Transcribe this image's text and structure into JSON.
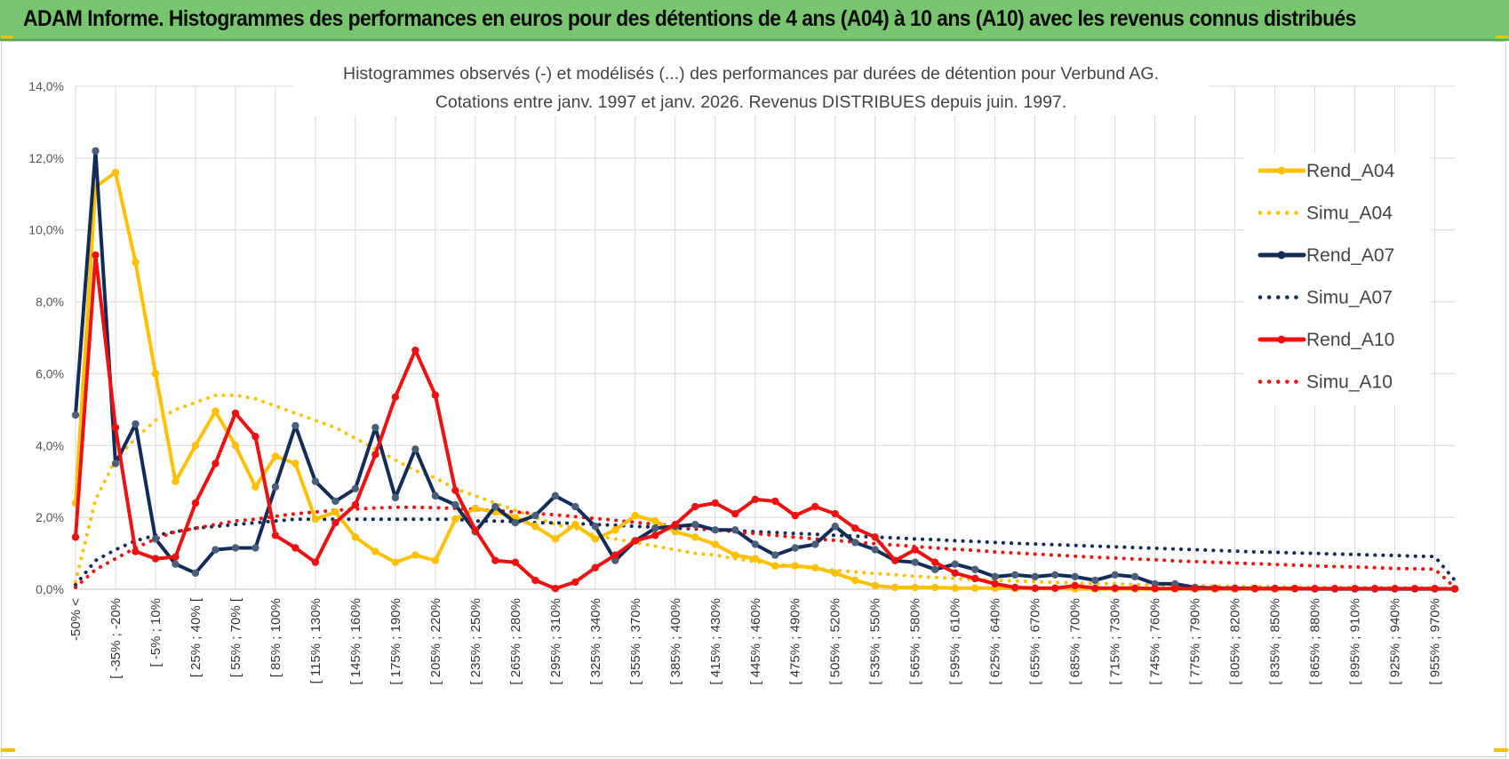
{
  "banner": {
    "title": "ADAM Informe. Histogrammes des performances en euros pour des détentions de 4 ans (A04) à 10 ans (A10) avec les revenus connus distribués"
  },
  "colors": {
    "banner": "#77c66f",
    "A04": "#ffc000",
    "A07": "#132b57",
    "A10": "#ee1111",
    "A07_marker": "#4a5f7a",
    "grid": "#d9d9d9"
  },
  "chart_data": {
    "type": "line",
    "title": [
      "Histogrammes observés (-) et modélisés (...) des performances par durées de détention pour Verbund AG.",
      "Cotations entre janv. 1997 et janv. 2026. Revenus DISTRIBUES depuis juin. 1997."
    ],
    "ylim": [
      0,
      0.14
    ],
    "yticks": [
      "0,0%",
      "2,0%",
      "4,0%",
      "6,0%",
      "8,0%",
      "10,0%",
      "12,0%",
      "14,0%"
    ],
    "x_labels": [
      "-50% <",
      "[ -35% ; -20%",
      "[ -5% ; 10%",
      "[ 25% ; 40% [",
      "[ 55% ; 70% [",
      "[ 85% ; 100%",
      "[ 115% ; 130%",
      "[ 145% ; 160%",
      "[ 175% ; 190%",
      "[ 205% ; 220%",
      "[ 235% ; 250%",
      "[ 265% ; 280%",
      "[ 295% ; 310%",
      "[ 325% ; 340%",
      "[ 355% ; 370%",
      "[ 385% ; 400%",
      "[ 415% ; 430%",
      "[ 445% ; 460%",
      "[ 475% ; 490%",
      "[ 505% ; 520%",
      "[ 535% ; 550%",
      "[ 565% ; 580%",
      "[ 595% ; 610%",
      "[ 625% ; 640%",
      "[ 655% ; 670%",
      "[ 685% ; 700%",
      "[ 715% ; 730%",
      "[ 745% ; 760%",
      "[ 775% ; 790%",
      "[ 805% ; 820%",
      "[ 835% ; 850%",
      "[ 865% ; 880%",
      "[ 895% ; 910%",
      "[ 925% ; 940%",
      "[ 955% ; 970%"
    ],
    "series": [
      {
        "name": "Rend_A04",
        "style": "solid",
        "color": "#ffc000",
        "values": [
          0.024,
          0.112,
          0.116,
          0.091,
          0.06,
          0.03,
          0.04,
          0.0495,
          0.04,
          0.0285,
          0.037,
          0.035,
          0.0195,
          0.0215,
          0.0145,
          0.0105,
          0.0075,
          0.0095,
          0.008,
          0.0195,
          0.0225,
          0.0215,
          0.02,
          0.0175,
          0.014,
          0.018,
          0.014,
          0.0165,
          0.0205,
          0.019,
          0.016,
          0.0145,
          0.0125,
          0.0095,
          0.0085,
          0.0065,
          0.0065,
          0.006,
          0.0045,
          0.0025,
          0.001,
          0.0005,
          0.0005,
          0.0005,
          0.0003,
          0.0003,
          0.0003,
          0.0002,
          0.0002,
          0.0002,
          0.0001,
          0.0001,
          0.0001,
          0.0001,
          0.0001,
          0.0001,
          0.0001,
          0.0001,
          0.0001,
          0.0001,
          0.0001,
          0.0001,
          0.0001,
          0.0001,
          0.0001,
          0.0001,
          0.0001,
          0.0001,
          0.0001,
          0.0001
        ]
      },
      {
        "name": "Simu_A04",
        "style": "dotted",
        "color": "#ffc000",
        "values": [
          0.002,
          0.025,
          0.036,
          0.042,
          0.047,
          0.05,
          0.052,
          0.054,
          0.054,
          0.053,
          0.051,
          0.049,
          0.047,
          0.045,
          0.042,
          0.039,
          0.036,
          0.033,
          0.031,
          0.028,
          0.026,
          0.024,
          0.022,
          0.02,
          0.018,
          0.017,
          0.015,
          0.014,
          0.013,
          0.012,
          0.011,
          0.01,
          0.0095,
          0.0085,
          0.0077,
          0.007,
          0.0064,
          0.0058,
          0.0053,
          0.0048,
          0.0044,
          0.004,
          0.0036,
          0.0033,
          0.003,
          0.0027,
          0.0025,
          0.0023,
          0.0021,
          0.0019,
          0.0017,
          0.0016,
          0.0015,
          0.0013,
          0.0012,
          0.0011,
          0.001,
          0.0009,
          0.0008,
          0.0008,
          0.0007,
          0.0006,
          0.0006,
          0.0005,
          0.0005,
          0.0005,
          0.0004,
          0.0004,
          0.0004,
          0.0001
        ]
      },
      {
        "name": "Rend_A07",
        "style": "solid",
        "color": "#132b57",
        "values": [
          0.0485,
          0.122,
          0.035,
          0.046,
          0.014,
          0.007,
          0.0045,
          0.011,
          0.0115,
          0.0115,
          0.0285,
          0.0455,
          0.03,
          0.0245,
          0.028,
          0.045,
          0.0255,
          0.039,
          0.026,
          0.0235,
          0.016,
          0.023,
          0.0185,
          0.0205,
          0.026,
          0.023,
          0.0175,
          0.008,
          0.0135,
          0.017,
          0.0175,
          0.018,
          0.0165,
          0.0165,
          0.0125,
          0.0095,
          0.0115,
          0.0125,
          0.0175,
          0.013,
          0.011,
          0.008,
          0.0075,
          0.0055,
          0.007,
          0.0055,
          0.0035,
          0.004,
          0.0035,
          0.004,
          0.0035,
          0.0025,
          0.004,
          0.0035,
          0.0015,
          0.0015,
          0.0005,
          0.0003,
          0.0003,
          0.0002,
          0.0002,
          0.0002,
          0.0001,
          0.0001,
          0.0001,
          0.0001,
          0.0001,
          0.0001,
          0.0001,
          0.0001
        ]
      },
      {
        "name": "Simu_A07",
        "style": "dotted",
        "color": "#132b57",
        "values": [
          0.0012,
          0.008,
          0.011,
          0.0135,
          0.015,
          0.016,
          0.017,
          0.0175,
          0.018,
          0.0185,
          0.019,
          0.0195,
          0.0195,
          0.0195,
          0.0195,
          0.0195,
          0.0195,
          0.0195,
          0.0195,
          0.0195,
          0.019,
          0.019,
          0.0188,
          0.0185,
          0.0185,
          0.0183,
          0.018,
          0.0178,
          0.0175,
          0.0173,
          0.017,
          0.0168,
          0.0165,
          0.0163,
          0.016,
          0.0158,
          0.0155,
          0.0153,
          0.015,
          0.0148,
          0.0145,
          0.0143,
          0.014,
          0.0138,
          0.0135,
          0.0133,
          0.013,
          0.0128,
          0.0126,
          0.0124,
          0.0122,
          0.012,
          0.0118,
          0.0116,
          0.0114,
          0.0112,
          0.011,
          0.0108,
          0.0106,
          0.0104,
          0.0103,
          0.0101,
          0.01,
          0.0098,
          0.0097,
          0.0095,
          0.0094,
          0.0092,
          0.0091,
          0.0025
        ]
      },
      {
        "name": "Rend_A10",
        "style": "solid",
        "color": "#ee1111",
        "values": [
          0.0145,
          0.093,
          0.045,
          0.0105,
          0.0085,
          0.009,
          0.024,
          0.035,
          0.049,
          0.0425,
          0.015,
          0.0115,
          0.0075,
          0.0185,
          0.0235,
          0.0375,
          0.0535,
          0.0665,
          0.054,
          0.0275,
          0.0165,
          0.008,
          0.0075,
          0.0025,
          0.0002,
          0.002,
          0.006,
          0.0095,
          0.0135,
          0.015,
          0.018,
          0.023,
          0.024,
          0.021,
          0.025,
          0.0245,
          0.0205,
          0.023,
          0.021,
          0.017,
          0.0145,
          0.008,
          0.011,
          0.0075,
          0.0045,
          0.003,
          0.0015,
          0.0005,
          0.0003,
          0.0003,
          0.001,
          0.0003,
          0.0003,
          0.0003,
          0.0002,
          0.0002,
          0.0002,
          0.0002,
          0.0002,
          0.0002,
          0.0002,
          0.0002,
          0.0002,
          0.0002,
          0.0002,
          0.0002,
          0.0002,
          0.0002,
          0.0002,
          0.0001
        ]
      },
      {
        "name": "Simu_A10",
        "style": "dotted",
        "color": "#ee1111",
        "values": [
          0.0005,
          0.0055,
          0.0085,
          0.0115,
          0.014,
          0.016,
          0.017,
          0.018,
          0.019,
          0.0195,
          0.0203,
          0.021,
          0.0215,
          0.022,
          0.0223,
          0.0226,
          0.0228,
          0.0228,
          0.0227,
          0.0225,
          0.0222,
          0.0219,
          0.0215,
          0.0211,
          0.0207,
          0.0202,
          0.0197,
          0.0192,
          0.0186,
          0.0181,
          0.0176,
          0.017,
          0.0165,
          0.016,
          0.0155,
          0.015,
          0.0145,
          0.014,
          0.0136,
          0.0131,
          0.0127,
          0.0123,
          0.0119,
          0.0115,
          0.0111,
          0.0108,
          0.0104,
          0.0101,
          0.0098,
          0.0095,
          0.0092,
          0.0089,
          0.0087,
          0.0084,
          0.0082,
          0.0079,
          0.0077,
          0.0075,
          0.0073,
          0.0071,
          0.0069,
          0.0067,
          0.0065,
          0.0063,
          0.0062,
          0.006,
          0.0058,
          0.0057,
          0.0056,
          0.0005
        ]
      }
    ],
    "legend": {
      "position": "right",
      "entries": [
        {
          "label": "Rend_A04",
          "series": "Rend_A04"
        },
        {
          "label": "Simu_A04",
          "series": "Simu_A04"
        },
        {
          "label": "Rend_A07",
          "series": "Rend_A07"
        },
        {
          "label": "Simu_A07",
          "series": "Simu_A07"
        },
        {
          "label": "Rend_A10",
          "series": "Rend_A10"
        },
        {
          "label": "Simu_A10",
          "series": "Simu_A10"
        }
      ]
    },
    "grid": true
  }
}
